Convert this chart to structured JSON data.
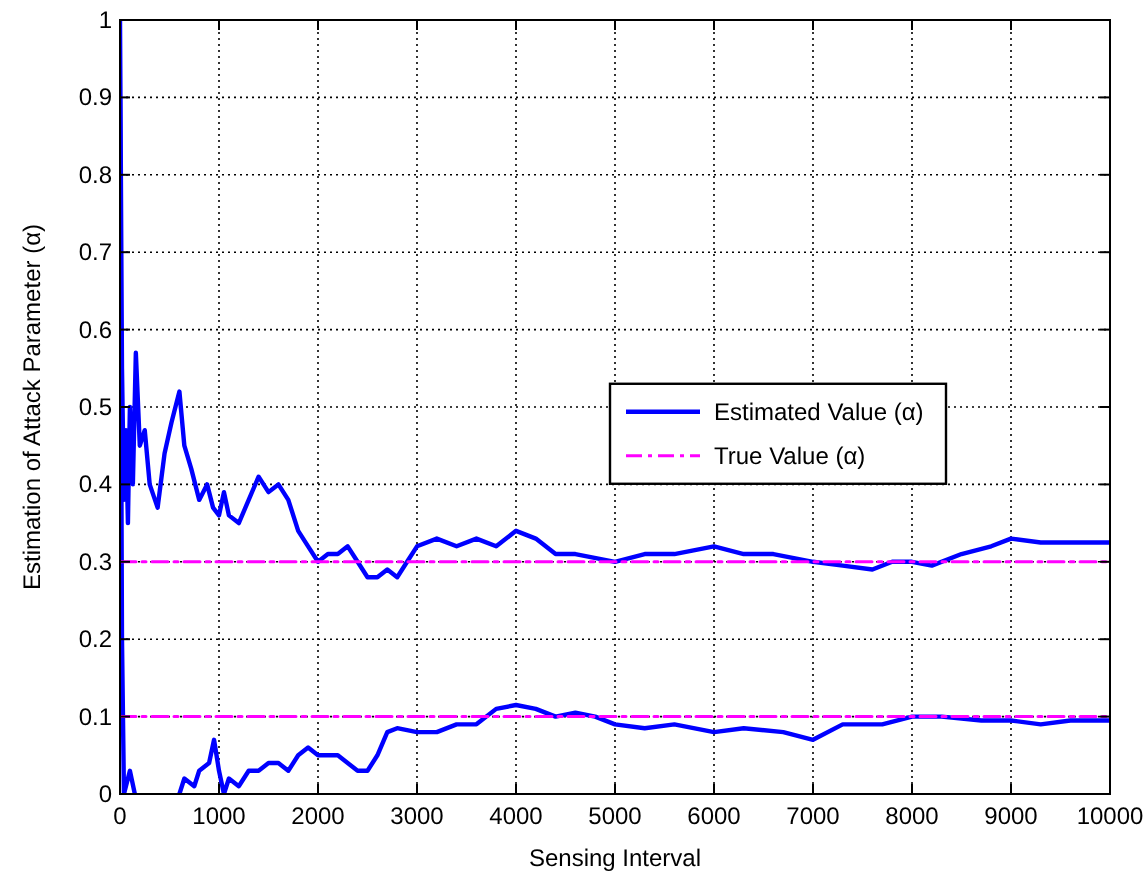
{
  "chart_data": {
    "type": "line",
    "xlabel": "Sensing Interval",
    "ylabel": "Estimation of Attack Parameter (α)",
    "xlim": [
      0,
      10000
    ],
    "ylim": [
      0,
      1
    ],
    "xticks": [
      0,
      1000,
      2000,
      3000,
      4000,
      5000,
      6000,
      7000,
      8000,
      9000,
      10000
    ],
    "yticks": [
      0,
      0.1,
      0.2,
      0.3,
      0.4,
      0.5,
      0.6,
      0.7,
      0.8,
      0.9,
      1
    ],
    "grid": true,
    "legend": "right",
    "marker": "none",
    "series": [
      {
        "name": "Estimated Value (α)",
        "color": "#0000ff",
        "line_style": "solid",
        "x": [
          0,
          20,
          40,
          60,
          80,
          100,
          130,
          160,
          200,
          250,
          300,
          380,
          450,
          520,
          600,
          650,
          720,
          800,
          880,
          940,
          1000,
          1050,
          1100,
          1200,
          1300,
          1400,
          1500,
          1600,
          1700,
          1800,
          1900,
          2000,
          2100,
          2200,
          2300,
          2400,
          2500,
          2600,
          2700,
          2800,
          2900,
          3000,
          3200,
          3400,
          3600,
          3800,
          4000,
          4200,
          4400,
          4600,
          5000,
          5300,
          5600,
          6000,
          6300,
          6600,
          7000,
          7300,
          7600,
          7800,
          8000,
          8200,
          8500,
          8800,
          9000,
          9300,
          9600,
          10000
        ],
        "values": [
          1.0,
          0.55,
          0.38,
          0.47,
          0.35,
          0.5,
          0.4,
          0.57,
          0.45,
          0.47,
          0.4,
          0.37,
          0.44,
          0.48,
          0.52,
          0.45,
          0.42,
          0.38,
          0.4,
          0.37,
          0.36,
          0.39,
          0.36,
          0.35,
          0.38,
          0.41,
          0.39,
          0.4,
          0.38,
          0.34,
          0.32,
          0.3,
          0.31,
          0.31,
          0.32,
          0.3,
          0.28,
          0.28,
          0.29,
          0.28,
          0.3,
          0.32,
          0.33,
          0.32,
          0.33,
          0.32,
          0.34,
          0.33,
          0.31,
          0.31,
          0.3,
          0.31,
          0.31,
          0.32,
          0.31,
          0.31,
          0.3,
          0.295,
          0.29,
          0.3,
          0.3,
          0.295,
          0.31,
          0.32,
          0.33,
          0.325,
          0.325,
          0.325
        ]
      },
      {
        "color": "#0000ff",
        "line_style": "solid",
        "x": [
          0,
          20,
          40,
          100,
          150,
          400,
          600,
          650,
          750,
          800,
          900,
          950,
          1000,
          1050,
          1100,
          1200,
          1300,
          1400,
          1500,
          1600,
          1700,
          1800,
          1900,
          2000,
          2100,
          2200,
          2400,
          2500,
          2600,
          2700,
          2800,
          3000,
          3200,
          3400,
          3600,
          3800,
          4000,
          4200,
          4400,
          4600,
          4800,
          5000,
          5300,
          5600,
          6000,
          6300,
          6700,
          7000,
          7300,
          7700,
          8000,
          8300,
          8700,
          9000,
          9300,
          9600,
          10000
        ],
        "values": [
          0.9,
          0.2,
          0.0,
          0.03,
          0.0,
          null,
          0.0,
          0.02,
          0.01,
          0.03,
          0.04,
          0.07,
          0.03,
          0.0,
          0.02,
          0.01,
          0.03,
          0.03,
          0.04,
          0.04,
          0.03,
          0.05,
          0.06,
          0.05,
          0.05,
          0.05,
          0.03,
          0.03,
          0.05,
          0.08,
          0.085,
          0.08,
          0.08,
          0.09,
          0.09,
          0.11,
          0.115,
          0.11,
          0.1,
          0.105,
          0.1,
          0.09,
          0.085,
          0.09,
          0.08,
          0.085,
          0.08,
          0.07,
          0.09,
          0.09,
          0.1,
          0.1,
          0.095,
          0.095,
          0.09,
          0.095,
          0.095
        ]
      },
      {
        "name": "True Value (α)",
        "color": "#ff00ff",
        "line_style": "dashed",
        "x": [
          0,
          10000
        ],
        "values": [
          0.3,
          0.3
        ]
      },
      {
        "color": "#ff00ff",
        "line_style": "dashed",
        "x": [
          0,
          10000
        ],
        "values": [
          0.1,
          0.1
        ]
      }
    ]
  }
}
